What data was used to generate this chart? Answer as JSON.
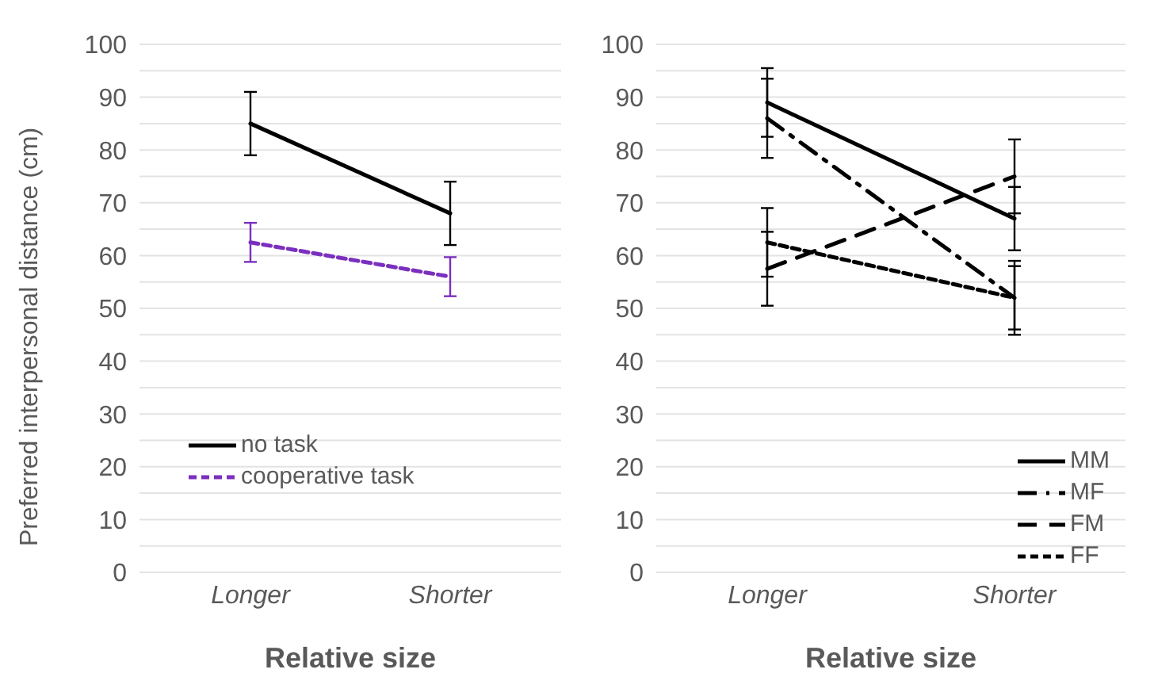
{
  "chart_data": [
    {
      "type": "line",
      "xlabel": "Relative size",
      "ylabel": "Preferred interpersonal distance (cm)",
      "categories": [
        "Longer",
        "Shorter"
      ],
      "series": [
        {
          "name": "no task",
          "color": "#000000",
          "values": [
            85,
            68
          ],
          "errors": [
            6,
            6
          ],
          "line_style": "solid"
        },
        {
          "name": "cooperative task",
          "color": "#7b2fbe",
          "values": [
            62.5,
            56
          ],
          "errors": [
            3.7,
            3.7
          ],
          "line_style": "dashed"
        }
      ],
      "ylim": [
        0,
        100
      ],
      "yticks": [
        0,
        {
          "value": 5,
          "label": null
        },
        10,
        {
          "value": 15,
          "label": null
        },
        20,
        {
          "value": 25,
          "label": null
        },
        30,
        {
          "value": 35,
          "label": null
        },
        40,
        {
          "value": 45,
          "label": null
        },
        50,
        {
          "value": 55,
          "label": null
        },
        60,
        {
          "value": 65,
          "label": null
        },
        70,
        {
          "value": 75,
          "label": null
        },
        80,
        {
          "value": 85,
          "label": null
        },
        90,
        {
          "value": 95,
          "label": null
        },
        100
      ],
      "grid": "y",
      "legend": "bottom left",
      "marker": "none"
    },
    {
      "type": "line",
      "xlabel": "Relative size",
      "categories": [
        "Longer",
        "Shorter"
      ],
      "series": [
        {
          "name": "MM",
          "color": "#000000",
          "values": [
            89,
            67
          ],
          "errors": [
            6.5,
            6
          ],
          "line_style": "solid"
        },
        {
          "name": "MF",
          "color": "#000000",
          "values": [
            86,
            52
          ],
          "errors": [
            7.5,
            7
          ],
          "line_style": "dashdot"
        },
        {
          "name": "FM",
          "color": "#000000",
          "values": [
            57.5,
            75
          ],
          "errors": [
            7,
            7
          ],
          "line_style": "longdash"
        },
        {
          "name": "FF",
          "color": "#000000",
          "values": [
            62.5,
            52
          ],
          "errors": [
            6.5,
            6
          ],
          "line_style": "dashed"
        }
      ],
      "ylim": [
        0,
        100
      ],
      "yticks": [
        0,
        {
          "value": 5,
          "label": null
        },
        10,
        {
          "value": 15,
          "label": null
        },
        20,
        {
          "value": 25,
          "label": null
        },
        30,
        {
          "value": 35,
          "label": null
        },
        40,
        {
          "value": 45,
          "label": null
        },
        50,
        {
          "value": 55,
          "label": null
        },
        60,
        {
          "value": 65,
          "label": null
        },
        70,
        {
          "value": 75,
          "label": null
        },
        80,
        {
          "value": 85,
          "label": null
        },
        90,
        {
          "value": 95,
          "label": null
        },
        100
      ],
      "grid": "y",
      "legend": "bottom right",
      "marker": "none"
    }
  ]
}
